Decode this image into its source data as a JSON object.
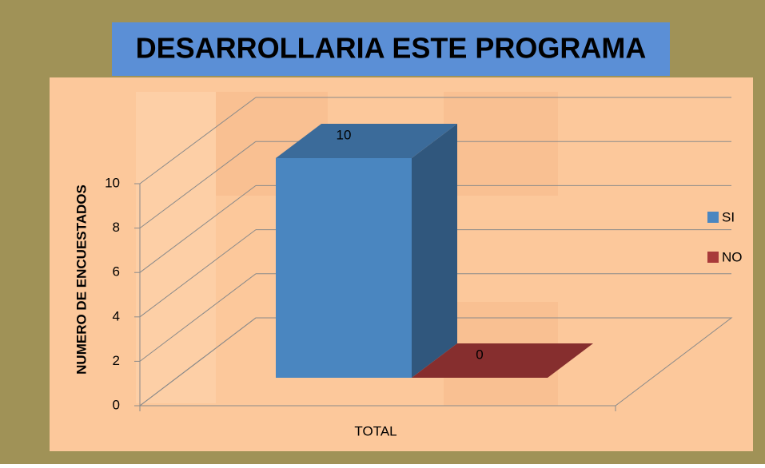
{
  "chart_data": {
    "type": "bar3d",
    "title": "DESARROLLARIA ESTE PROGRAMA",
    "y_label": "NUMERO DE ENCUESTADOS",
    "categories": [
      "TOTAL"
    ],
    "series": [
      {
        "name": "SI",
        "color": "#4a86c0",
        "values": [
          10
        ]
      },
      {
        "name": "NO",
        "color": "#a83a3a",
        "values": [
          0
        ]
      }
    ],
    "ylim": [
      0,
      10
    ],
    "yticks": [
      0,
      2,
      4,
      6,
      8,
      10
    ],
    "grid": true,
    "legend": "right"
  }
}
